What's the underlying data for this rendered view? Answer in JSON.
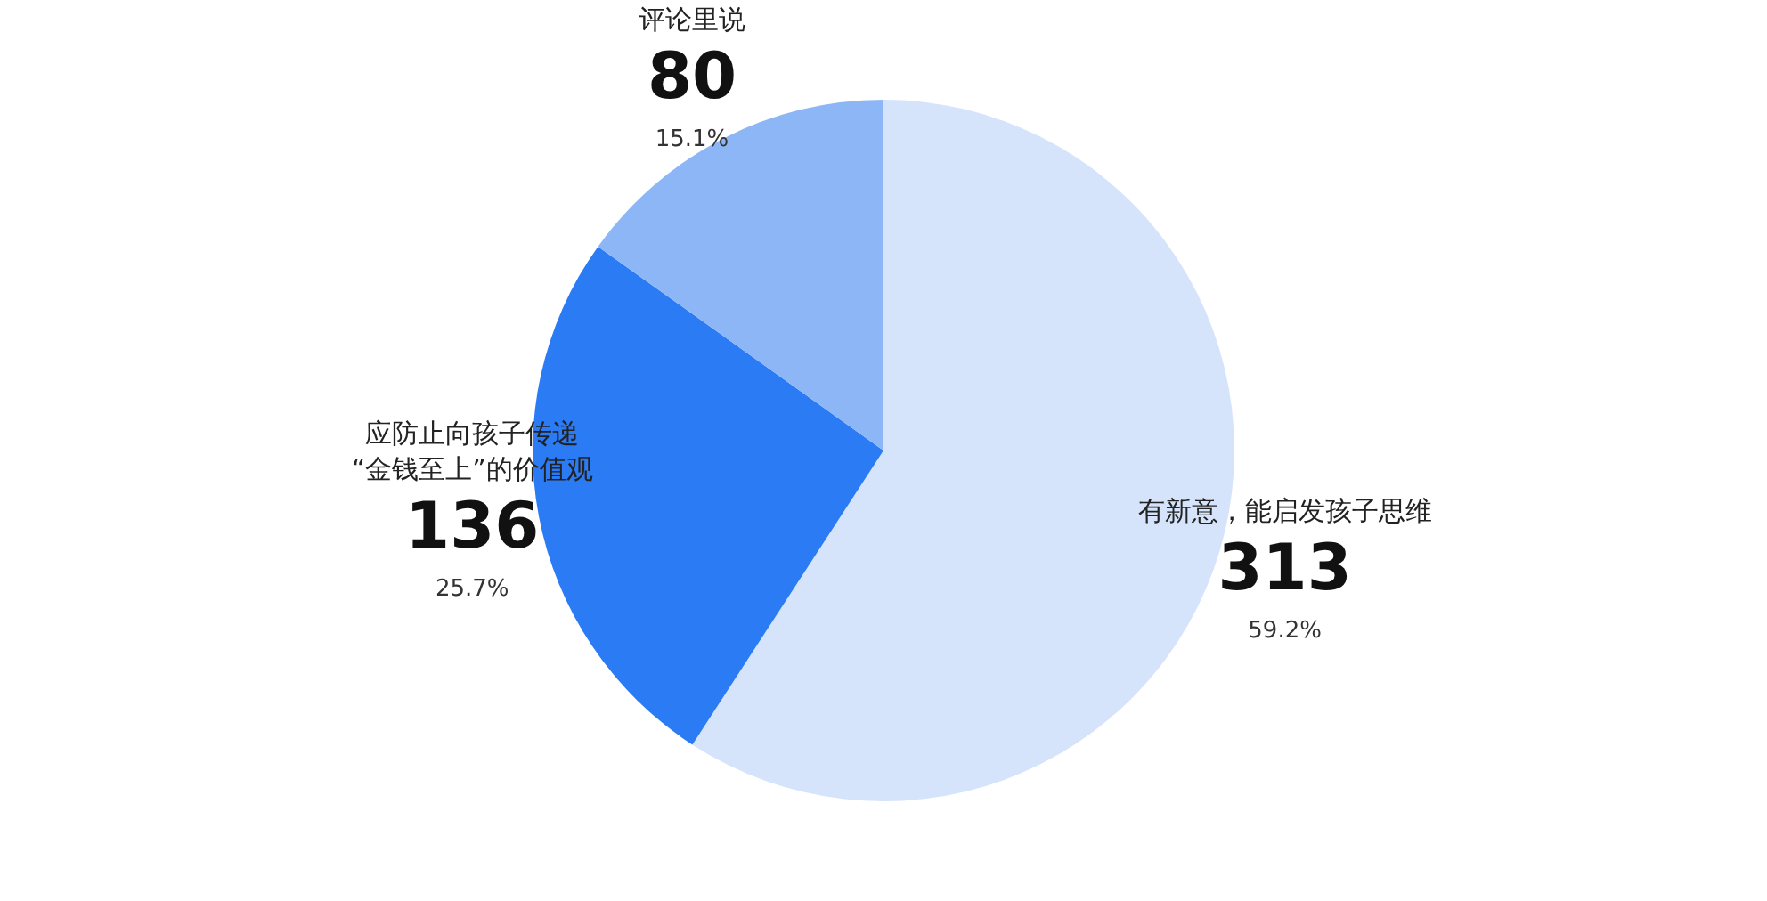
{
  "chart_data": {
    "type": "pie",
    "categories": [
      "有新意，能启发孩子思维",
      "应防止向孩子传递\n“金钱至上”的价值观",
      "评论里说"
    ],
    "values": [
      313,
      136,
      80
    ],
    "colors": [
      "#d6e4fb",
      "#2b7bf5",
      "#8db6f7"
    ],
    "data_labels": true,
    "annotations": [
      "59.2%",
      "25.7%",
      "15.1%"
    ]
  }
}
